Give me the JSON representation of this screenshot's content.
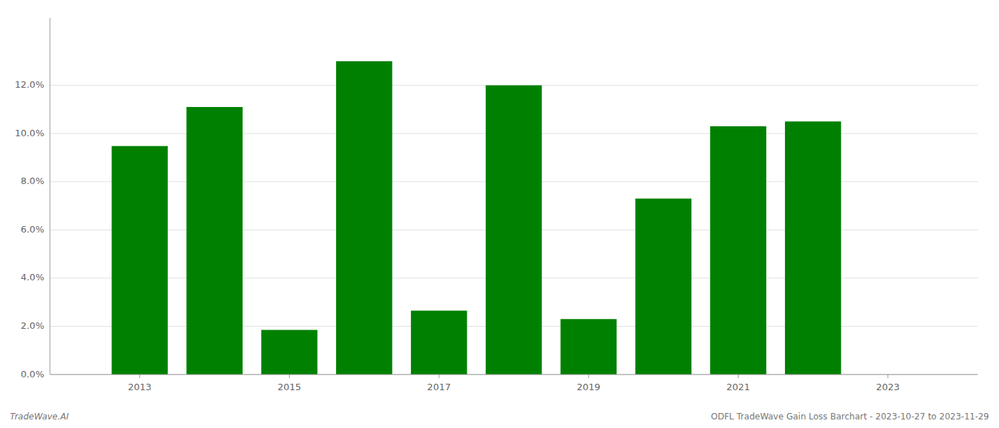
{
  "chart_data": {
    "type": "bar",
    "x": [
      2013,
      2014,
      2015,
      2016,
      2017,
      2018,
      2019,
      2020,
      2021,
      2022
    ],
    "values": [
      0.0948,
      0.111,
      0.0185,
      0.13,
      0.0265,
      0.12,
      0.023,
      0.073,
      0.103,
      0.105
    ],
    "color": "#008000",
    "xlim": [
      2011.8,
      2024.2
    ],
    "xticks": [
      2013,
      2015,
      2017,
      2019,
      2021,
      2023
    ],
    "ylim": [
      0,
      0.148
    ],
    "yticks": [
      {
        "value": 0.0,
        "label": "0.0%"
      },
      {
        "value": 0.02,
        "label": "2.0%"
      },
      {
        "value": 0.04,
        "label": "4.0%"
      },
      {
        "value": 0.06,
        "label": "6.0%"
      },
      {
        "value": 0.08,
        "label": "8.0%"
      },
      {
        "value": 0.1,
        "label": "10.0%"
      },
      {
        "value": 0.12,
        "label": "12.0%"
      }
    ],
    "grid": true,
    "annotations": [
      "TradeWave.AI",
      "ODFL TradeWave Gain Loss Barchart - 2023-10-27 to 2023-11-29"
    ]
  }
}
